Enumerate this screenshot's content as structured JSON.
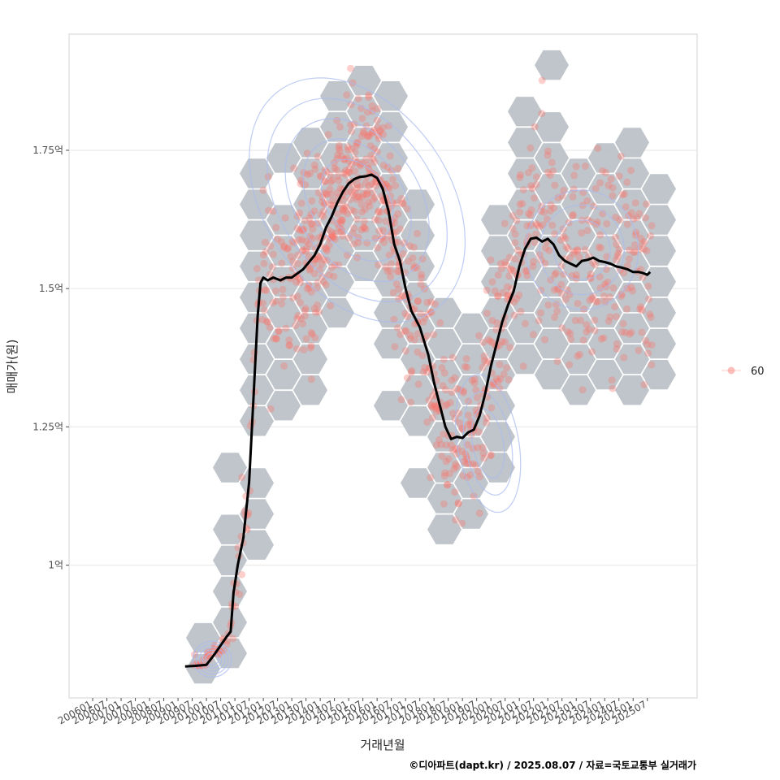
{
  "chart_data": {
    "type": "scatter",
    "title": "",
    "xlabel": "거래년월",
    "ylabel": "매매가(원)",
    "caption": "©디아파트(dapt.kr) / 2025.08.07 / 자료=국토교통부 실거래가",
    "x_tick_labels": [
      "200601",
      "200607",
      "200701",
      "200707",
      "200801",
      "200807",
      "200901",
      "200907",
      "201001",
      "201007",
      "201101",
      "201107",
      "201201",
      "201207",
      "201301",
      "201307",
      "201401",
      "201407",
      "201501",
      "201507",
      "201601",
      "201607",
      "201701",
      "201707",
      "201801",
      "201807",
      "201901",
      "201907",
      "202001",
      "202007",
      "202101",
      "202107",
      "202201",
      "202207",
      "202301",
      "202307",
      "202401",
      "202407",
      "202501",
      "202507"
    ],
    "y_ticks": [
      {
        "value": 1.0,
        "label": "1억"
      },
      {
        "value": 1.25,
        "label": "1.25억"
      },
      {
        "value": 1.5,
        "label": "1.5억"
      },
      {
        "value": 1.75,
        "label": "1.75억"
      }
    ],
    "xlim": [
      2005.17,
      2027.25
    ],
    "ylim": [
      0.76,
      1.96
    ],
    "legend": {
      "position": "right",
      "entries": [
        {
          "label": "60",
          "color": "#f8766d"
        }
      ]
    },
    "colors": {
      "points": "#f8766d",
      "hex": "#bcc2c7",
      "contour": "#a9bbf0",
      "trend": "#000000"
    },
    "trend": {
      "name": "moving average",
      "x": [
        2009.25,
        2009.6,
        2010.0,
        2010.3,
        2010.5,
        2010.7,
        2010.85,
        2010.95,
        2011.1,
        2011.3,
        2011.5,
        2011.65,
        2011.8,
        2011.9,
        2012.0,
        2012.15,
        2012.35,
        2012.6,
        2012.8,
        2013.0,
        2013.4,
        2013.8,
        2014.0,
        2014.2,
        2014.4,
        2014.6,
        2014.8,
        2015.0,
        2015.2,
        2015.4,
        2015.6,
        2015.8,
        2016.0,
        2016.2,
        2016.4,
        2016.6,
        2016.8,
        2017.0,
        2017.2,
        2017.5,
        2017.8,
        2018.0,
        2018.2,
        2018.4,
        2018.6,
        2018.8,
        2019.0,
        2019.2,
        2019.4,
        2019.6,
        2019.8,
        2020.0,
        2020.2,
        2020.4,
        2020.6,
        2020.8,
        2021.0,
        2021.2,
        2021.4,
        2021.6,
        2021.8,
        2022.0,
        2022.2,
        2022.4,
        2022.6,
        2022.8,
        2023.0,
        2023.2,
        2023.4,
        2023.6,
        2023.8,
        2024.0,
        2024.2,
        2024.4,
        2024.6,
        2024.8,
        2025.0,
        2025.2,
        2025.35,
        2025.5,
        2025.6
      ],
      "y": [
        0.817,
        0.818,
        0.82,
        0.84,
        0.855,
        0.87,
        0.88,
        0.95,
        1.0,
        1.05,
        1.15,
        1.3,
        1.45,
        1.51,
        1.52,
        1.515,
        1.52,
        1.515,
        1.52,
        1.52,
        1.535,
        1.56,
        1.58,
        1.61,
        1.63,
        1.655,
        1.675,
        1.69,
        1.698,
        1.702,
        1.703,
        1.706,
        1.7,
        1.68,
        1.64,
        1.58,
        1.55,
        1.5,
        1.46,
        1.43,
        1.38,
        1.33,
        1.29,
        1.25,
        1.228,
        1.232,
        1.23,
        1.24,
        1.245,
        1.27,
        1.31,
        1.36,
        1.4,
        1.44,
        1.47,
        1.495,
        1.54,
        1.572,
        1.59,
        1.592,
        1.585,
        1.59,
        1.58,
        1.56,
        1.55,
        1.545,
        1.54,
        1.55,
        1.552,
        1.556,
        1.55,
        1.548,
        1.545,
        1.54,
        1.538,
        1.535,
        1.53,
        1.53,
        1.528,
        1.525,
        1.53
      ]
    }
  }
}
